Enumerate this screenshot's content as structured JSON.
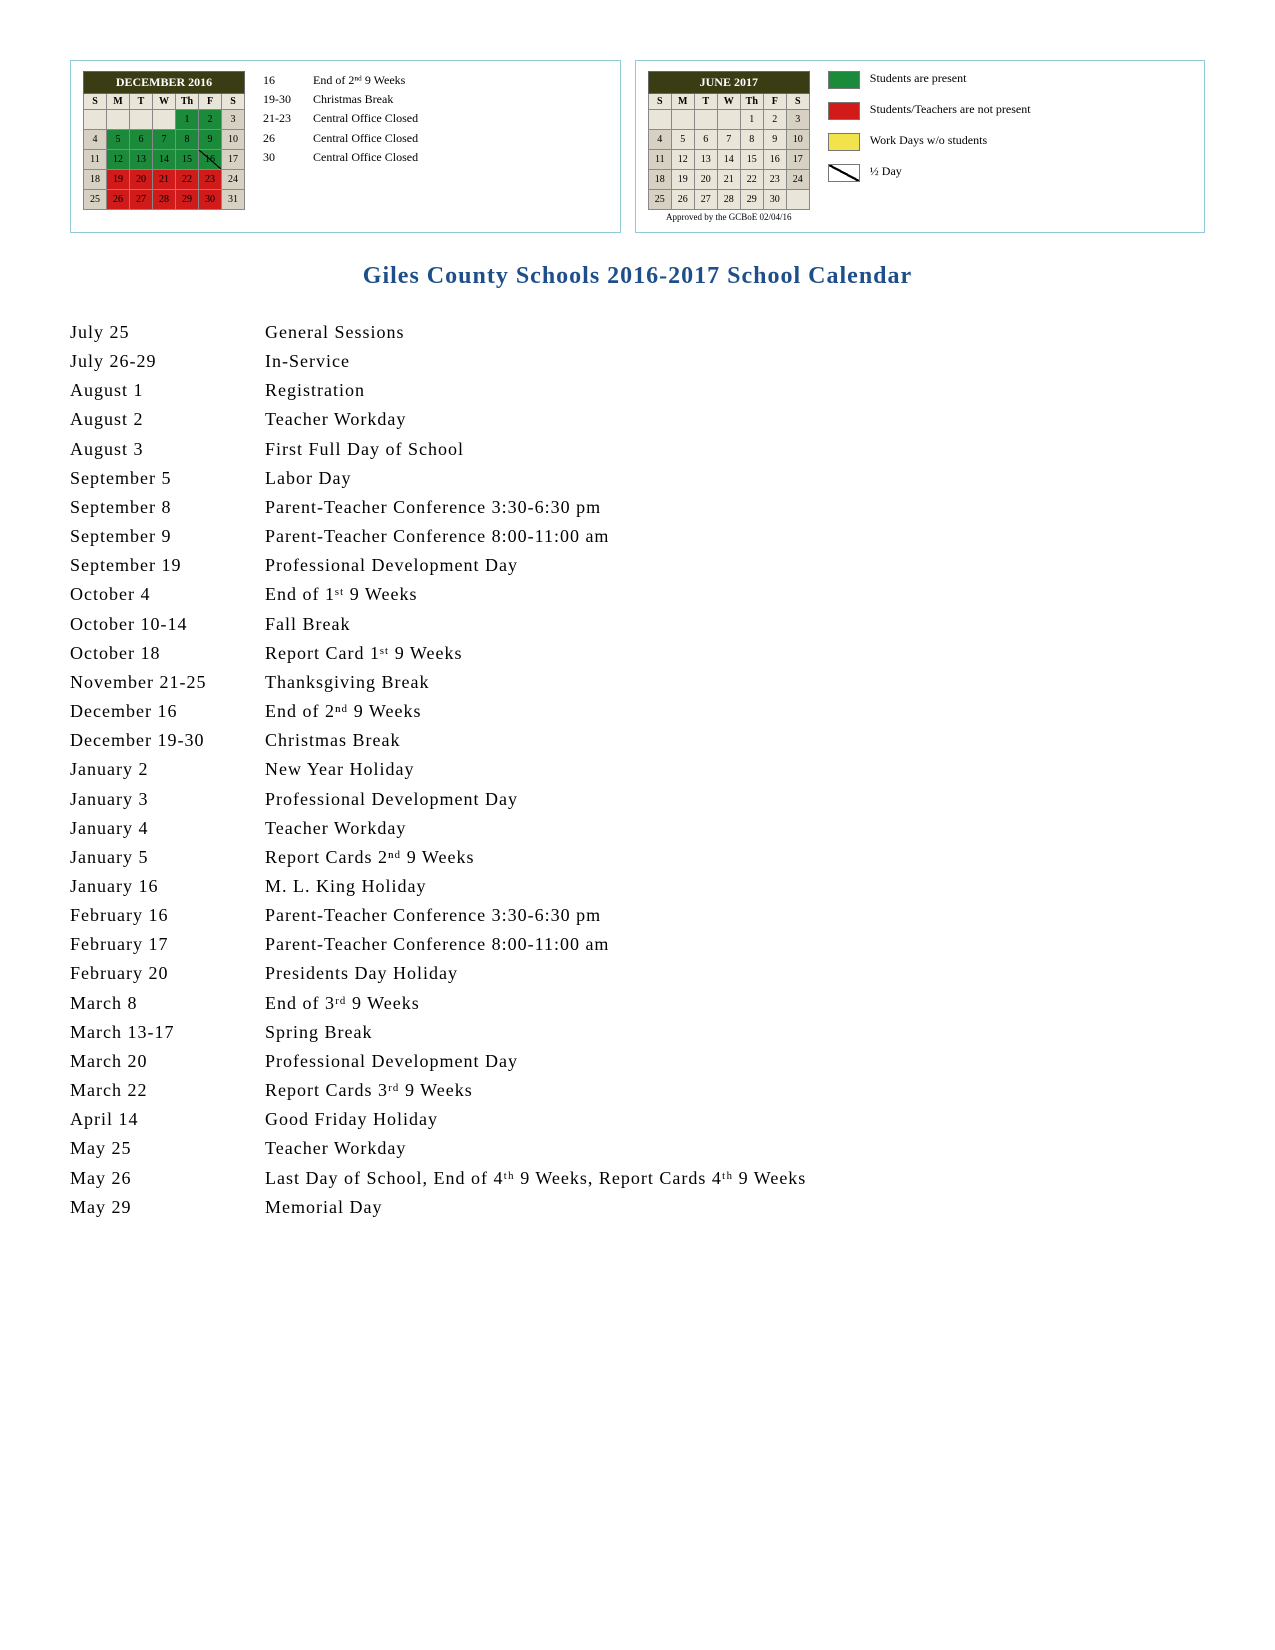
{
  "colors": {
    "panel_border": "#8fcad6",
    "cal_header_bg": "#3a3d14",
    "cal_header_fg": "#ffffff",
    "cell_default_bg": "#e9e5d8",
    "green": "#1b8a3a",
    "red": "#d11a1a",
    "yellow": "#f2e24b",
    "gray": "#d6d1c2",
    "title_color": "#1e4f8a"
  },
  "december": {
    "title": "DECEMBER 2016",
    "dow": [
      "S",
      "M",
      "T",
      "W",
      "Th",
      "F",
      "S"
    ],
    "weeks": [
      [
        {
          "v": "",
          "c": ""
        },
        {
          "v": "",
          "c": ""
        },
        {
          "v": "",
          "c": ""
        },
        {
          "v": "",
          "c": ""
        },
        {
          "v": "1",
          "c": "g"
        },
        {
          "v": "2",
          "c": "g"
        },
        {
          "v": "3",
          "c": "gray"
        }
      ],
      [
        {
          "v": "4",
          "c": "gray"
        },
        {
          "v": "5",
          "c": "g"
        },
        {
          "v": "6",
          "c": "g"
        },
        {
          "v": "7",
          "c": "g"
        },
        {
          "v": "8",
          "c": "g"
        },
        {
          "v": "9",
          "c": "g"
        },
        {
          "v": "10",
          "c": "gray"
        }
      ],
      [
        {
          "v": "11",
          "c": "gray"
        },
        {
          "v": "12",
          "c": "g"
        },
        {
          "v": "13",
          "c": "g"
        },
        {
          "v": "14",
          "c": "g"
        },
        {
          "v": "15",
          "c": "g"
        },
        {
          "v": "16",
          "c": "g half"
        },
        {
          "v": "17",
          "c": "gray"
        }
      ],
      [
        {
          "v": "18",
          "c": "gray"
        },
        {
          "v": "19",
          "c": "r"
        },
        {
          "v": "20",
          "c": "r"
        },
        {
          "v": "21",
          "c": "r"
        },
        {
          "v": "22",
          "c": "r"
        },
        {
          "v": "23",
          "c": "r"
        },
        {
          "v": "24",
          "c": "gray"
        }
      ],
      [
        {
          "v": "25",
          "c": "gray"
        },
        {
          "v": "26",
          "c": "r"
        },
        {
          "v": "27",
          "c": "r"
        },
        {
          "v": "28",
          "c": "r"
        },
        {
          "v": "29",
          "c": "r"
        },
        {
          "v": "30",
          "c": "r"
        },
        {
          "v": "31",
          "c": "gray"
        }
      ]
    ]
  },
  "december_notes": [
    {
      "k": "16",
      "v": "End of 2ⁿᵈ 9 Weeks"
    },
    {
      "k": "19-30",
      "v": "Christmas Break"
    },
    {
      "k": "21-23",
      "v": "Central Office Closed"
    },
    {
      "k": "26",
      "v": "Central Office Closed"
    },
    {
      "k": "30",
      "v": "Central Office Closed"
    }
  ],
  "june": {
    "title": "JUNE 2017",
    "dow": [
      "S",
      "M",
      "T",
      "W",
      "Th",
      "F",
      "S"
    ],
    "weeks": [
      [
        {
          "v": "",
          "c": ""
        },
        {
          "v": "",
          "c": ""
        },
        {
          "v": "",
          "c": ""
        },
        {
          "v": "",
          "c": ""
        },
        {
          "v": "1",
          "c": ""
        },
        {
          "v": "2",
          "c": ""
        },
        {
          "v": "3",
          "c": "gray"
        }
      ],
      [
        {
          "v": "4",
          "c": "gray"
        },
        {
          "v": "5",
          "c": ""
        },
        {
          "v": "6",
          "c": ""
        },
        {
          "v": "7",
          "c": ""
        },
        {
          "v": "8",
          "c": ""
        },
        {
          "v": "9",
          "c": ""
        },
        {
          "v": "10",
          "c": "gray"
        }
      ],
      [
        {
          "v": "11",
          "c": "gray"
        },
        {
          "v": "12",
          "c": ""
        },
        {
          "v": "13",
          "c": ""
        },
        {
          "v": "14",
          "c": ""
        },
        {
          "v": "15",
          "c": ""
        },
        {
          "v": "16",
          "c": ""
        },
        {
          "v": "17",
          "c": "gray"
        }
      ],
      [
        {
          "v": "18",
          "c": "gray"
        },
        {
          "v": "19",
          "c": ""
        },
        {
          "v": "20",
          "c": ""
        },
        {
          "v": "21",
          "c": ""
        },
        {
          "v": "22",
          "c": ""
        },
        {
          "v": "23",
          "c": ""
        },
        {
          "v": "24",
          "c": "gray"
        }
      ],
      [
        {
          "v": "25",
          "c": "gray"
        },
        {
          "v": "26",
          "c": ""
        },
        {
          "v": "27",
          "c": ""
        },
        {
          "v": "28",
          "c": ""
        },
        {
          "v": "29",
          "c": ""
        },
        {
          "v": "30",
          "c": ""
        },
        {
          "v": "",
          "c": ""
        }
      ]
    ],
    "approved": "Approved by the GCBoE 02/04/16"
  },
  "legend": [
    {
      "color": "#1b8a3a",
      "text": "Students are present"
    },
    {
      "color": "#d11a1a",
      "text": "Students/Teachers are not present"
    },
    {
      "color": "#f2e24b",
      "text": "Work Days w/o students"
    },
    {
      "half": true,
      "text": "½ Day"
    }
  ],
  "main_title": "Giles County Schools 2016-2017 School Calendar",
  "events": [
    {
      "d": "July 25",
      "t": "General Sessions"
    },
    {
      "d": "July 26-29",
      "t": "In-Service"
    },
    {
      "d": "August 1",
      "t": "Registration"
    },
    {
      "d": "August 2",
      "t": "Teacher Workday"
    },
    {
      "d": "August 3",
      "t": "First Full Day of School"
    },
    {
      "d": "September 5",
      "t": "Labor Day"
    },
    {
      "d": "September 8",
      "t": "Parent-Teacher Conference 3:30-6:30 pm"
    },
    {
      "d": "September 9",
      "t": "Parent-Teacher Conference 8:00-11:00 am"
    },
    {
      "d": "September 19",
      "t": "Professional Development Day"
    },
    {
      "d": "October 4",
      "t": "End of 1ˢᵗ 9 Weeks"
    },
    {
      "d": "October 10-14",
      "t": "Fall Break"
    },
    {
      "d": "October 18",
      "t": "Report Card 1ˢᵗ 9 Weeks"
    },
    {
      "d": "November 21-25",
      "t": "Thanksgiving Break"
    },
    {
      "d": "December 16",
      "t": "End of 2ⁿᵈ 9 Weeks"
    },
    {
      "d": "December 19-30",
      "t": "Christmas Break"
    },
    {
      "d": "January 2",
      "t": "New Year Holiday"
    },
    {
      "d": "January 3",
      "t": "Professional Development Day"
    },
    {
      "d": "January 4",
      "t": "Teacher Workday"
    },
    {
      "d": "January 5",
      "t": "Report Cards 2ⁿᵈ 9 Weeks"
    },
    {
      "d": "January 16",
      "t": "M. L. King Holiday"
    },
    {
      "d": "February 16",
      "t": "Parent-Teacher Conference 3:30-6:30 pm"
    },
    {
      "d": "February 17",
      "t": "Parent-Teacher Conference 8:00-11:00 am"
    },
    {
      "d": "February 20",
      "t": "Presidents Day Holiday"
    },
    {
      "d": "March 8",
      "t": "End of 3ʳᵈ 9 Weeks"
    },
    {
      "d": "March 13-17",
      "t": "Spring Break"
    },
    {
      "d": "March 20",
      "t": "Professional Development Day"
    },
    {
      "d": "March 22",
      "t": "Report Cards 3ʳᵈ 9 Weeks"
    },
    {
      "d": "April 14",
      "t": "Good Friday Holiday"
    },
    {
      "d": "May 25",
      "t": "Teacher Workday"
    },
    {
      "d": "May 26",
      "t": "Last Day of School, End of 4ᵗʰ 9 Weeks, Report Cards 4ᵗʰ 9 Weeks"
    },
    {
      "d": "May 29",
      "t": "Memorial Day"
    }
  ]
}
